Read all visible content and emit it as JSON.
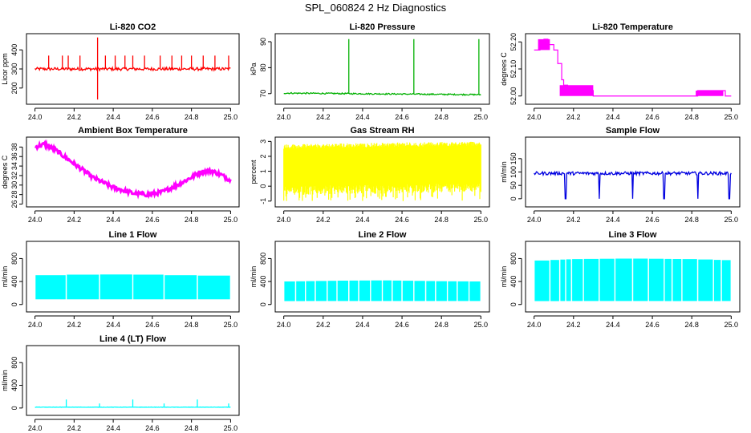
{
  "title": "SPL_060824  2 Hz Diagnostics",
  "chart_data": [
    {
      "type": "line",
      "title": "Li-820 CO2",
      "ylabel": "Licor ppm",
      "xlim": [
        24.0,
        25.0
      ],
      "ylim": [
        130,
        470
      ],
      "xticks": [
        "24.0",
        "24.2",
        "24.4",
        "24.6",
        "24.8",
        "25.0"
      ],
      "yticks": [
        {
          "v": 200,
          "label": "200"
        },
        {
          "v": 300,
          "label": "300"
        },
        {
          "v": 400,
          "label": "400"
        }
      ],
      "color": "#ff0000",
      "series": [
        {
          "base": [
            [
              24.0,
              300
            ],
            [
              25.0,
              300
            ]
          ],
          "noise": 8,
          "spikes": [
            {
              "x": 24.07,
              "y": 370
            },
            {
              "x": 24.14,
              "y": 370
            },
            {
              "x": 24.17,
              "y": 370
            },
            {
              "x": 24.23,
              "y": 370
            },
            {
              "x": 24.32,
              "y": 465
            },
            {
              "x": 24.32,
              "y": 140
            },
            {
              "x": 24.36,
              "y": 370
            },
            {
              "x": 24.41,
              "y": 370
            },
            {
              "x": 24.46,
              "y": 370
            },
            {
              "x": 24.5,
              "y": 370
            },
            {
              "x": 24.56,
              "y": 370
            },
            {
              "x": 24.64,
              "y": 370
            },
            {
              "x": 24.7,
              "y": 370
            },
            {
              "x": 24.75,
              "y": 370
            },
            {
              "x": 24.8,
              "y": 370
            },
            {
              "x": 24.86,
              "y": 370
            },
            {
              "x": 24.92,
              "y": 370
            },
            {
              "x": 24.99,
              "y": 370
            }
          ]
        }
      ]
    },
    {
      "type": "line",
      "title": "Li-820 Pressure",
      "ylabel": "kPa",
      "xlim": [
        24.0,
        25.0
      ],
      "ylim": [
        67,
        92
      ],
      "xticks": [
        "24.0",
        "24.2",
        "24.4",
        "24.6",
        "24.8",
        "25.0"
      ],
      "yticks": [
        {
          "v": 70,
          "label": "70"
        },
        {
          "v": 80,
          "label": "80"
        },
        {
          "v": 90,
          "label": "90"
        }
      ],
      "color": "#00b000",
      "series": [
        {
          "base": [
            [
              24.0,
              70.2
            ],
            [
              25.0,
              69.6
            ]
          ],
          "noise": 0.25,
          "spikes": [
            {
              "x": 24.33,
              "y": 91
            },
            {
              "x": 24.66,
              "y": 91
            },
            {
              "x": 24.99,
              "y": 91
            }
          ]
        }
      ]
    },
    {
      "type": "line",
      "title": "Li-820 Temperature",
      "ylabel": "degrees C",
      "xlim": [
        24.0,
        25.0
      ],
      "ylim": [
        51.98,
        52.22
      ],
      "xticks": [
        "24.0",
        "24.2",
        "24.4",
        "24.6",
        "24.8",
        "25.0"
      ],
      "yticks": [
        {
          "v": 52.0,
          "label": "52.00"
        },
        {
          "v": 52.1,
          "label": "52.10"
        },
        {
          "v": 52.2,
          "label": "52.20"
        }
      ],
      "color": "#ff00ff",
      "series": [
        {
          "step": [
            [
              24.0,
              52.17
            ],
            [
              24.03,
              52.19
            ],
            [
              24.05,
              52.21
            ],
            [
              24.07,
              52.19
            ],
            [
              24.1,
              52.17
            ],
            [
              24.12,
              52.12
            ],
            [
              24.14,
              52.06
            ],
            [
              24.15,
              52.04
            ],
            [
              24.17,
              52.03
            ],
            [
              24.25,
              52.02
            ],
            [
              24.3,
              52.0
            ],
            [
              24.8,
              52.0
            ],
            [
              24.83,
              52.02
            ],
            [
              24.95,
              52.02
            ],
            [
              24.97,
              52.0
            ],
            [
              25.0,
              52.0
            ]
          ]
        }
      ]
    },
    {
      "type": "line",
      "title": "Ambient Box Temperature",
      "ylabel": "degrees C",
      "xlim": [
        24.0,
        25.0
      ],
      "ylim": [
        26,
        39.5
      ],
      "xticks": [
        "24.0",
        "24.2",
        "24.4",
        "24.6",
        "24.8",
        "25.0"
      ],
      "yticks": [
        {
          "v": 26,
          "label": "26"
        },
        {
          "v": 28,
          "label": "28"
        },
        {
          "v": 30,
          "label": "30"
        },
        {
          "v": 32,
          "label": "32"
        },
        {
          "v": 34,
          "label": "34"
        },
        {
          "v": 36,
          "label": "36"
        },
        {
          "v": 38,
          "label": "38"
        }
      ],
      "color": "#ff00ff",
      "series": [
        {
          "base": [
            [
              24.0,
              38.0
            ],
            [
              24.05,
              38.6
            ],
            [
              24.1,
              37.5
            ],
            [
              24.2,
              34.5
            ],
            [
              24.3,
              31.5
            ],
            [
              24.4,
              29.5
            ],
            [
              24.5,
              28.3
            ],
            [
              24.58,
              28.0
            ],
            [
              24.65,
              28.5
            ],
            [
              24.75,
              30.5
            ],
            [
              24.85,
              32.8
            ],
            [
              24.9,
              33.0
            ],
            [
              24.95,
              32.2
            ],
            [
              25.0,
              31.0
            ]
          ],
          "noise": 0.45
        }
      ]
    },
    {
      "type": "area",
      "title": "Gas Stream RH",
      "ylabel": "percent",
      "xlim": [
        24.0,
        25.0
      ],
      "ylim": [
        -1.2,
        3.1
      ],
      "xticks": [
        "24.0",
        "24.2",
        "24.4",
        "24.6",
        "24.8",
        "25.0"
      ],
      "yticks": [
        {
          "v": -1,
          "label": "-1"
        },
        {
          "v": 0,
          "label": "0"
        },
        {
          "v": 1,
          "label": "1"
        },
        {
          "v": 2,
          "label": "2"
        },
        {
          "v": 3,
          "label": "3"
        }
      ],
      "color": "#ffff00",
      "series": [
        {
          "band_top": [
            [
              24.0,
              2.6
            ],
            [
              25.0,
              2.8
            ]
          ],
          "band_bottom": [
            [
              24.0,
              0.0
            ],
            [
              25.0,
              0.2
            ]
          ],
          "deep_low": -1.0
        }
      ]
    },
    {
      "type": "line",
      "title": "Sample Flow",
      "ylabel": "ml/min",
      "xlim": [
        24.0,
        25.0
      ],
      "ylim": [
        -20,
        220
      ],
      "xticks": [
        "24.0",
        "24.2",
        "24.4",
        "24.6",
        "24.8",
        "25.0"
      ],
      "yticks": [
        {
          "v": 0,
          "label": "0"
        },
        {
          "v": 50,
          "label": "50"
        },
        {
          "v": 100,
          "label": "100"
        },
        {
          "v": 150,
          "label": "150"
        }
      ],
      "color": "#0000e0",
      "series": [
        {
          "base": [
            [
              24.0,
              95
            ],
            [
              25.0,
              95
            ]
          ],
          "noise": 6,
          "dips": [
            24.16,
            24.33,
            24.5,
            24.66,
            24.83,
            24.99
          ],
          "dip_value": 0
        }
      ]
    },
    {
      "type": "bar",
      "title": "Line 1 Flow",
      "ylabel": "ml/min",
      "xlim": [
        24.0,
        25.0
      ],
      "ylim": [
        -80,
        1050
      ],
      "xticks": [
        "24.0",
        "24.2",
        "24.4",
        "24.6",
        "24.8",
        "25.0"
      ],
      "yticks": [
        {
          "v": 0,
          "label": "0"
        },
        {
          "v": 400,
          "label": "400"
        },
        {
          "v": 800,
          "label": "800"
        }
      ],
      "color": "#00ffff",
      "series": [
        {
          "top": [
            [
              24.0,
              500
            ],
            [
              24.16,
              520
            ],
            [
              24.33,
              520
            ],
            [
              24.5,
              525
            ],
            [
              24.66,
              515
            ],
            [
              24.83,
              505
            ],
            [
              25.0,
              500
            ]
          ],
          "bottom": 90,
          "gaps": [
            24.16,
            24.33,
            24.5,
            24.66,
            24.83
          ]
        }
      ]
    },
    {
      "type": "bar",
      "title": "Line 2 Flow",
      "ylabel": "ml/min",
      "xlim": [
        24.0,
        25.0
      ],
      "ylim": [
        -80,
        1050
      ],
      "xticks": [
        "24.0",
        "24.2",
        "24.4",
        "24.6",
        "24.8",
        "25.0"
      ],
      "yticks": [
        {
          "v": 0,
          "label": "0"
        },
        {
          "v": 400,
          "label": "400"
        },
        {
          "v": 800,
          "label": "800"
        }
      ],
      "color": "#00ffff",
      "series": [
        {
          "top": [
            [
              24.0,
              400
            ],
            [
              24.3,
              415
            ],
            [
              24.5,
              420
            ],
            [
              24.8,
              405
            ],
            [
              25.0,
              400
            ]
          ],
          "bottom": 60,
          "gaps": [
            24.06,
            24.11,
            24.16,
            24.22,
            24.27,
            24.33,
            24.38,
            24.44,
            24.5,
            24.55,
            24.6,
            24.66,
            24.72,
            24.77,
            24.83,
            24.88,
            24.94
          ]
        }
      ]
    },
    {
      "type": "bar",
      "title": "Line 3 Flow",
      "ylabel": "ml/min",
      "xlim": [
        24.0,
        25.0
      ],
      "ylim": [
        -80,
        1050
      ],
      "xticks": [
        "24.0",
        "24.2",
        "24.4",
        "24.6",
        "24.8",
        "25.0"
      ],
      "yticks": [
        {
          "v": 0,
          "label": "0"
        },
        {
          "v": 400,
          "label": "400"
        },
        {
          "v": 800,
          "label": "800"
        }
      ],
      "color": "#00ffff",
      "series": [
        {
          "top": [
            [
              24.0,
              760
            ],
            [
              24.2,
              790
            ],
            [
              24.5,
              800
            ],
            [
              24.8,
              790
            ],
            [
              25.0,
              770
            ]
          ],
          "bottom": 60,
          "gaps": [
            24.08,
            24.13,
            24.16,
            24.19,
            24.25,
            24.33,
            24.41,
            24.5,
            24.58,
            24.66,
            24.7,
            24.75,
            24.83,
            24.91,
            24.95
          ]
        }
      ]
    },
    {
      "type": "line",
      "title": "Line 4 (LT) Flow",
      "ylabel": "ml/min",
      "xlim": [
        24.0,
        25.0
      ],
      "ylim": [
        -80,
        1050
      ],
      "xticks": [
        "24.0",
        "24.2",
        "24.4",
        "24.6",
        "24.8",
        "25.0"
      ],
      "yticks": [
        {
          "v": 0,
          "label": "0"
        },
        {
          "v": 400,
          "label": "400"
        },
        {
          "v": 800,
          "label": "800"
        }
      ],
      "color": "#00ffff",
      "series": [
        {
          "base": [
            [
              24.0,
              15
            ],
            [
              25.0,
              15
            ]
          ],
          "noise": 3,
          "spikes": [
            {
              "x": 24.16,
              "y": 150
            },
            {
              "x": 24.33,
              "y": 80
            },
            {
              "x": 24.5,
              "y": 150
            },
            {
              "x": 24.66,
              "y": 80
            },
            {
              "x": 24.83,
              "y": 150
            },
            {
              "x": 24.99,
              "y": 80
            }
          ]
        }
      ]
    }
  ]
}
